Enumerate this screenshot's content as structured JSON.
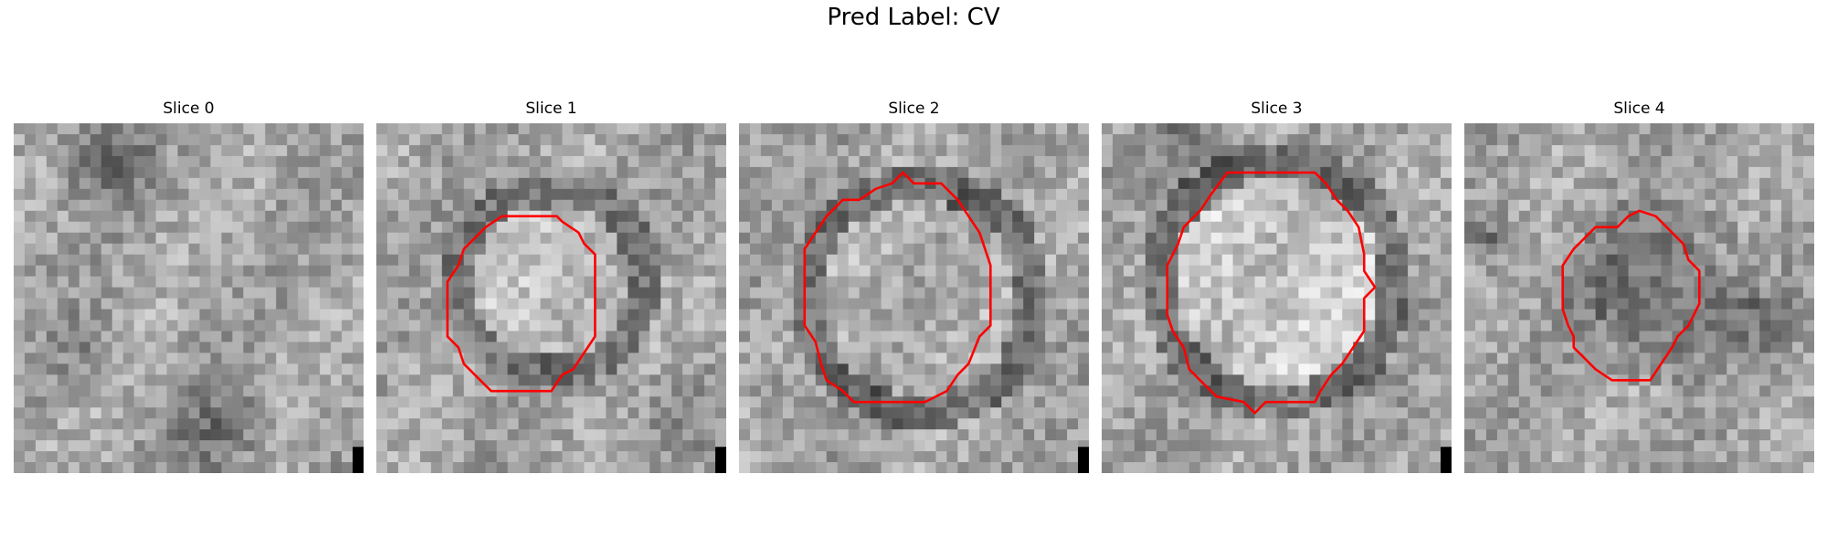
{
  "figure": {
    "suptitle": "Pred Label: CV"
  },
  "panels": [
    {
      "title": "Slice 0",
      "outline_color": "",
      "seed": 11,
      "structure": "none"
    },
    {
      "title": "Slice 1",
      "outline_color": "#ff0000",
      "seed": 23,
      "structure": "vesicle-bright"
    },
    {
      "title": "Slice 2",
      "outline_color": "#ff0000",
      "seed": 37,
      "structure": "vesicle-ring"
    },
    {
      "title": "Slice 3",
      "outline_color": "#ff0000",
      "seed": 41,
      "structure": "vesicle-bright-large"
    },
    {
      "title": "Slice 4",
      "outline_color": "#ff0000",
      "seed": 53,
      "structure": "vesicle-dark"
    }
  ],
  "style": {
    "colormap": "grayscale",
    "outline_color": "#ff0000"
  }
}
